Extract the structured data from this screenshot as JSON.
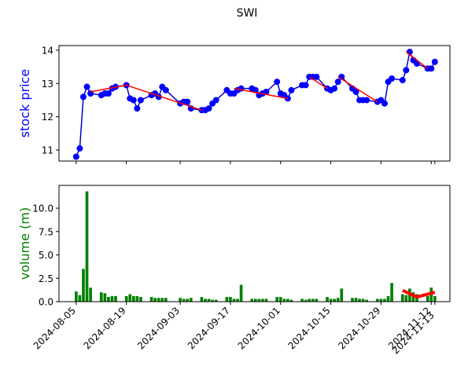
{
  "chart_data": [
    {
      "type": "line",
      "title": "SWI",
      "ylabel": "stock price",
      "ylabel_color": "#0000ff",
      "x": [
        "2024-08-05",
        "2024-08-06",
        "2024-08-07",
        "2024-08-08",
        "2024-08-09",
        "2024-08-12",
        "2024-08-13",
        "2024-08-14",
        "2024-08-15",
        "2024-08-16",
        "2024-08-19",
        "2024-08-20",
        "2024-08-21",
        "2024-08-22",
        "2024-08-23",
        "2024-08-26",
        "2024-08-27",
        "2024-08-28",
        "2024-08-29",
        "2024-08-30",
        "2024-09-03",
        "2024-09-04",
        "2024-09-05",
        "2024-09-06",
        "2024-09-09",
        "2024-09-10",
        "2024-09-11",
        "2024-09-12",
        "2024-09-13",
        "2024-09-16",
        "2024-09-17",
        "2024-09-18",
        "2024-09-19",
        "2024-09-20",
        "2024-09-23",
        "2024-09-24",
        "2024-09-25",
        "2024-09-26",
        "2024-09-27",
        "2024-09-30",
        "2024-10-01",
        "2024-10-02",
        "2024-10-03",
        "2024-10-04",
        "2024-10-07",
        "2024-10-08",
        "2024-10-09",
        "2024-10-10",
        "2024-10-11",
        "2024-10-14",
        "2024-10-15",
        "2024-10-16",
        "2024-10-17",
        "2024-10-18",
        "2024-10-21",
        "2024-10-22",
        "2024-10-23",
        "2024-10-24",
        "2024-10-25",
        "2024-10-28",
        "2024-10-29",
        "2024-10-30",
        "2024-10-31",
        "2024-11-01",
        "2024-11-04",
        "2024-11-05",
        "2024-11-06",
        "2024-11-07",
        "2024-11-08",
        "2024-11-11",
        "2024-11-12",
        "2024-11-13"
      ],
      "series": [
        {
          "color": "#0000cc",
          "values": [
            10.8,
            11.05,
            12.6,
            12.9,
            12.7,
            12.65,
            12.7,
            12.7,
            12.85,
            12.9,
            12.95,
            12.55,
            12.5,
            12.25,
            12.5,
            12.65,
            12.7,
            12.6,
            12.9,
            12.8,
            12.4,
            12.45,
            12.45,
            12.25,
            12.2,
            12.2,
            12.25,
            12.4,
            12.5,
            12.8,
            12.7,
            12.7,
            12.8,
            12.85,
            12.85,
            12.8,
            12.65,
            12.7,
            12.75,
            13.05,
            12.7,
            12.65,
            12.55,
            12.8,
            12.95,
            12.95,
            13.2,
            13.2,
            13.2,
            12.85,
            12.8,
            12.85,
            13.05,
            13.2,
            12.85,
            12.75,
            12.5,
            12.5,
            12.5,
            12.45,
            12.5,
            12.4,
            13.05,
            13.15,
            13.1,
            13.4,
            13.95,
            13.7,
            13.6,
            13.45,
            13.45,
            13.65
          ]
        }
      ],
      "trend_lines": [
        {
          "color": "#ff0000",
          "x": [
            "2024-08-09",
            "2024-08-19"
          ],
          "values": [
            12.75,
            12.95
          ]
        },
        {
          "color": "#ff0000",
          "x": [
            "2024-08-19",
            "2024-09-09"
          ],
          "values": [
            12.95,
            12.2
          ]
        },
        {
          "color": "#ff0000",
          "x": [
            "2024-09-18",
            "2024-10-03"
          ],
          "values": [
            12.85,
            12.55
          ]
        },
        {
          "color": "#ff0000",
          "x": [
            "2024-10-09",
            "2024-10-14"
          ],
          "values": [
            13.2,
            12.85
          ]
        },
        {
          "color": "#ff0000",
          "x": [
            "2024-10-17",
            "2024-10-28"
          ],
          "values": [
            13.2,
            12.45
          ]
        },
        {
          "color": "#ff0000",
          "x": [
            "2024-11-05",
            "2024-11-11"
          ],
          "values": [
            13.95,
            13.45
          ]
        }
      ],
      "xlim": [
        "2024-07-31T05:00",
        "2024-11-17T05:00"
      ],
      "xticks": [
        "2024-08-05",
        "2024-08-19",
        "2024-09-03",
        "2024-09-17",
        "2024-10-01",
        "2024-10-15",
        "2024-10-29",
        "2024-11-12",
        "2024-11-13"
      ],
      "ylim": [
        10.67,
        14.14
      ],
      "yticks": [
        11,
        12,
        13,
        14
      ]
    },
    {
      "type": "bar",
      "ylabel": "volume (m)",
      "ylabel_color": "#008000",
      "x": [
        "2024-08-05",
        "2024-08-06",
        "2024-08-07",
        "2024-08-08",
        "2024-08-09",
        "2024-08-12",
        "2024-08-13",
        "2024-08-14",
        "2024-08-15",
        "2024-08-16",
        "2024-08-19",
        "2024-08-20",
        "2024-08-21",
        "2024-08-22",
        "2024-08-23",
        "2024-08-26",
        "2024-08-27",
        "2024-08-28",
        "2024-08-29",
        "2024-08-30",
        "2024-09-03",
        "2024-09-04",
        "2024-09-05",
        "2024-09-06",
        "2024-09-09",
        "2024-09-10",
        "2024-09-11",
        "2024-09-12",
        "2024-09-13",
        "2024-09-16",
        "2024-09-17",
        "2024-09-18",
        "2024-09-19",
        "2024-09-20",
        "2024-09-23",
        "2024-09-24",
        "2024-09-25",
        "2024-09-26",
        "2024-09-27",
        "2024-09-30",
        "2024-10-01",
        "2024-10-02",
        "2024-10-03",
        "2024-10-04",
        "2024-10-07",
        "2024-10-08",
        "2024-10-09",
        "2024-10-10",
        "2024-10-11",
        "2024-10-14",
        "2024-10-15",
        "2024-10-16",
        "2024-10-17",
        "2024-10-18",
        "2024-10-21",
        "2024-10-22",
        "2024-10-23",
        "2024-10-24",
        "2024-10-25",
        "2024-10-28",
        "2024-10-29",
        "2024-10-30",
        "2024-10-31",
        "2024-11-01",
        "2024-11-04",
        "2024-11-05",
        "2024-11-06",
        "2024-11-07",
        "2024-11-08",
        "2024-11-11",
        "2024-11-12",
        "2024-11-13"
      ],
      "series": [
        {
          "color": "#008000",
          "values": [
            1.1,
            0.7,
            3.5,
            11.8,
            1.5,
            1.0,
            0.9,
            0.5,
            0.6,
            0.6,
            0.6,
            0.8,
            0.6,
            0.6,
            0.5,
            0.5,
            0.4,
            0.4,
            0.4,
            0.4,
            0.4,
            0.3,
            0.3,
            0.4,
            0.5,
            0.3,
            0.3,
            0.2,
            0.2,
            0.5,
            0.5,
            0.3,
            0.3,
            1.8,
            0.3,
            0.3,
            0.3,
            0.3,
            0.3,
            0.5,
            0.5,
            0.3,
            0.3,
            0.2,
            0.3,
            0.2,
            0.3,
            0.3,
            0.3,
            0.5,
            0.3,
            0.3,
            0.4,
            1.4,
            0.4,
            0.4,
            0.3,
            0.3,
            0.2,
            0.3,
            0.3,
            0.3,
            0.6,
            2.0,
            0.8,
            0.7,
            1.4,
            1.0,
            0.8,
            0.6,
            1.5,
            0.6
          ]
        }
      ],
      "trend_lines": [
        {
          "color": "#ff0000",
          "x": [
            "2024-11-04",
            "2024-11-08",
            "2024-11-13"
          ],
          "values": [
            1.2,
            0.5,
            1.0
          ]
        }
      ],
      "xlim": [
        "2024-07-31T05:00",
        "2024-11-17T05:00"
      ],
      "xticks": [
        "2024-08-05",
        "2024-08-19",
        "2024-09-03",
        "2024-09-17",
        "2024-10-01",
        "2024-10-15",
        "2024-10-29",
        "2024-11-12",
        "2024-11-13"
      ],
      "ylim": [
        0,
        12.44
      ],
      "yticks": [
        {
          "value": 0,
          "label": "0.0"
        },
        {
          "value": 2.5,
          "label": "2.5"
        },
        {
          "value": 5,
          "label": "5.0"
        },
        {
          "value": 7.5,
          "label": "7.5"
        },
        {
          "value": 10,
          "label": "10.0"
        }
      ]
    }
  ]
}
